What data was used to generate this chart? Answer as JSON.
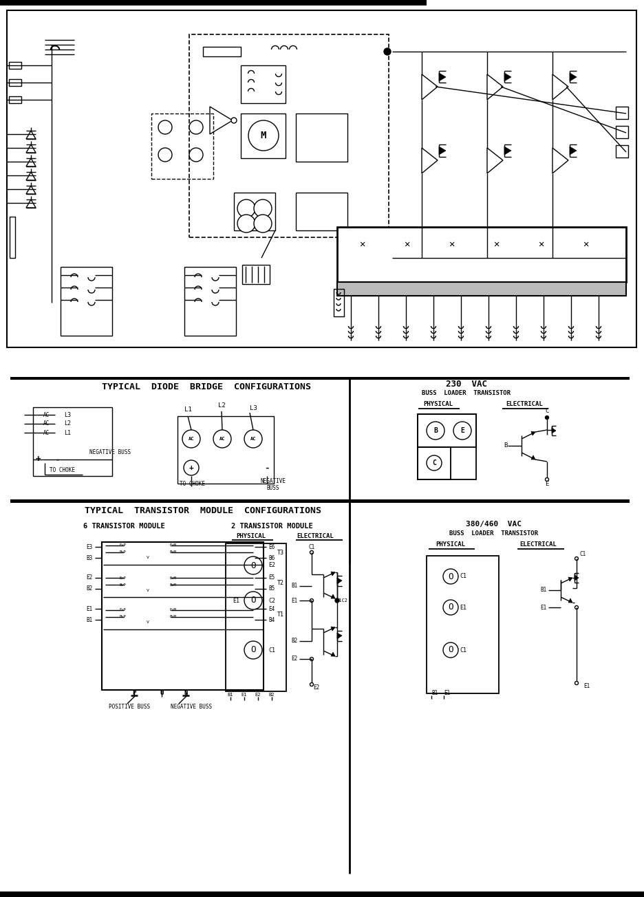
{
  "bg_color": "#ffffff",
  "line_color": "#000000",
  "fig_width": 9.37,
  "fig_height": 13.04,
  "title_diode": "TYPICAL  DIODE  BRIDGE  CONFIGURATIONS",
  "title_transistor": "TYPICAL  TRANSISTOR  MODULE  CONFIGURATIONS",
  "label_230vac": "230  VAC",
  "label_230_sub": "BUSS  LOADER  TRANSISTOR",
  "label_380vac": "380/460  VAC",
  "label_380_sub": "BUSS  LOADER  TRANSISTOR",
  "label_6t": "6 TRANSISTOR MODULE",
  "label_2t": "2 TRANSISTOR MODULE",
  "label_physical": "PHYSICAL",
  "label_electrical": "ELECTRICAL",
  "label_negative_buss": "NEGATIVE BUSS",
  "label_positive_buss": "POSITIVE BUSS",
  "label_to_choke": "TO CHOKE",
  "label_negative_buss2": "NEGATIVE\nBUSS"
}
